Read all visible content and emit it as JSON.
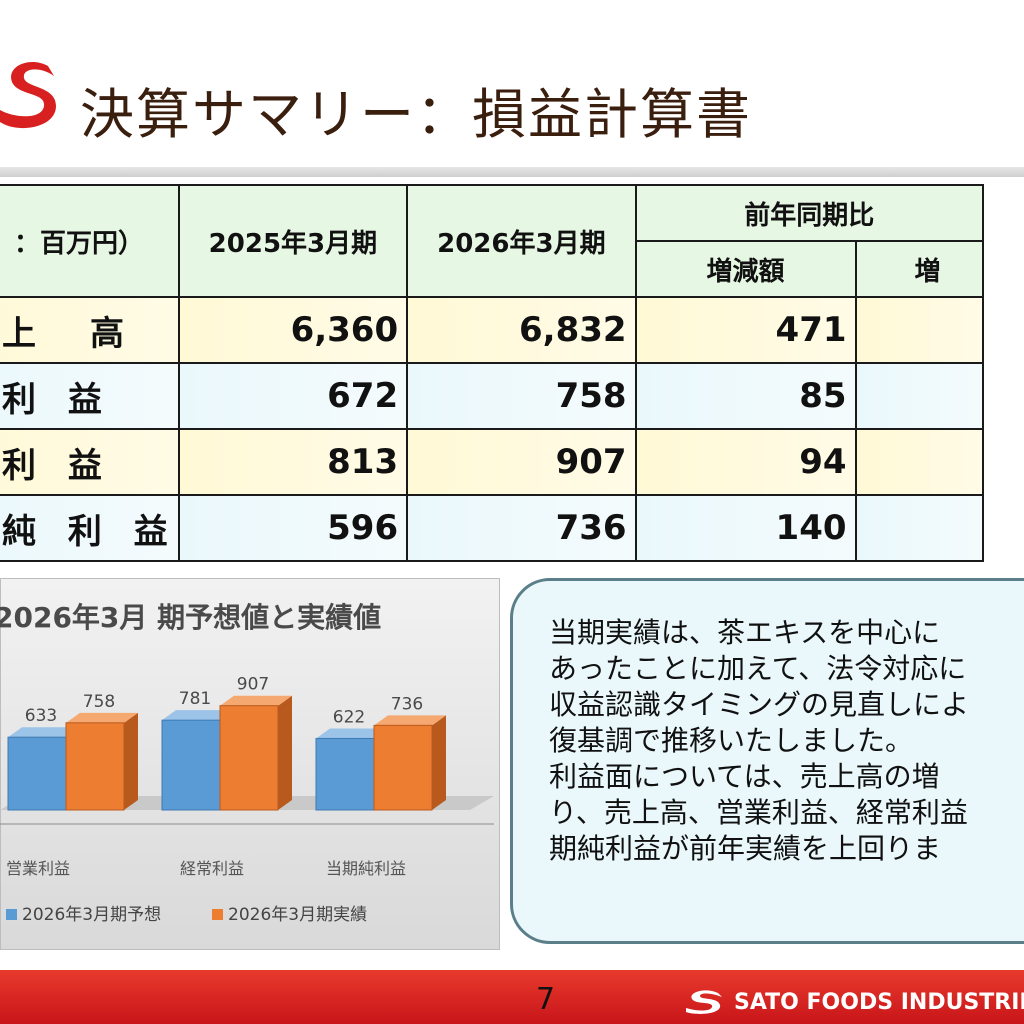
{
  "title": "決算サマリー：損益計算書",
  "table": {
    "unit_header": "：百万円）",
    "col_2025": "2025年3月期",
    "col_2026": "2026年3月期",
    "col_yoy": "前年同期比",
    "col_change": "増減額",
    "col_rate": "増",
    "rows": [
      {
        "label": "上　高",
        "v2025": "6,360",
        "v2026": "6,832",
        "change": "471"
      },
      {
        "label": "利 益",
        "v2025": "672",
        "v2026": "758",
        "change": "85"
      },
      {
        "label": "利 益",
        "v2025": "813",
        "v2026": "907",
        "change": "94"
      },
      {
        "label": "純 利 益",
        "v2025": "596",
        "v2026": "736",
        "change": "140"
      }
    ]
  },
  "chart_data": {
    "type": "bar",
    "title": "2026年3月 期予想値と実績値",
    "categories": [
      "営業利益",
      "経常利益",
      "当期純利益"
    ],
    "series": [
      {
        "name": "2026年3月期予想",
        "values": [
          633,
          781,
          622
        ],
        "color": "#5b9bd5"
      },
      {
        "name": "2026年3月期実績",
        "values": [
          758,
          907,
          736
        ],
        "color": "#ed7d31"
      }
    ],
    "ylim": [
      0,
      1000
    ],
    "legend_position": "bottom",
    "grid": false
  },
  "summary_text": [
    "当期実績は、茶エキスを中心に",
    "あったことに加えて、法令対応に",
    "収益認識タイミングの見直しによ",
    "復基調で推移いたしました。",
    "利益面については、売上高の増",
    "り、売上高、営業利益、経常利益",
    "期純利益が前年実績を上回りま"
  ],
  "footer": {
    "page_number": "7",
    "brand": "SATO FOODS INDUSTRIES"
  },
  "colors": {
    "brand_red": "#d7201f",
    "title_brown": "#3a1e0e",
    "header_green": "#e6f7e4"
  }
}
